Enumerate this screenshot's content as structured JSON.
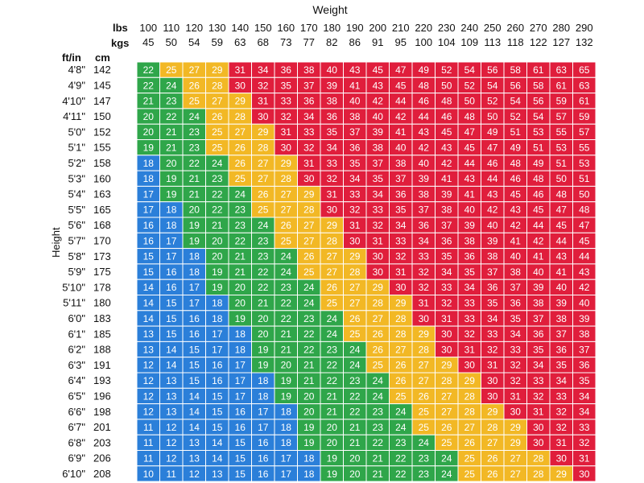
{
  "chart_data": {
    "type": "heatmap",
    "title": "Weight",
    "ylabel": "Height",
    "col_unit_labels": [
      "lbs",
      "kgs"
    ],
    "row_unit_labels": [
      "ft/in",
      "cm"
    ],
    "lbs": [
      "100",
      "110",
      "120",
      "130",
      "140",
      "150",
      "160",
      "170",
      "180",
      "190",
      "200",
      "210",
      "220",
      "230",
      "240",
      "250",
      "260",
      "270",
      "280",
      "290"
    ],
    "kgs": [
      "45",
      "50",
      "54",
      "59",
      "63",
      "68",
      "73",
      "77",
      "82",
      "86",
      "91",
      "95",
      "100",
      "104",
      "109",
      "113",
      "118",
      "122",
      "127",
      "132"
    ],
    "heights_ftin": [
      "4'8\"",
      "4'9\"",
      "4'10\"",
      "4'11\"",
      "5'0\"",
      "5'1\"",
      "5'2\"",
      "5'3\"",
      "5'4\"",
      "5'5\"",
      "5'6\"",
      "5'7\"",
      "5'8\"",
      "5'9\"",
      "5'10\"",
      "5'11\"",
      "6'0\"",
      "6'1\"",
      "6'2\"",
      "6'3\"",
      "6'4\"",
      "6'5\"",
      "6'6\"",
      "6'7\"",
      "6'8\"",
      "6'9\"",
      "6'10\""
    ],
    "heights_cm": [
      "142",
      "145",
      "147",
      "150",
      "152",
      "155",
      "158",
      "160",
      "163",
      "165",
      "168",
      "170",
      "173",
      "175",
      "178",
      "180",
      "183",
      "185",
      "188",
      "191",
      "193",
      "196",
      "198",
      "201",
      "203",
      "206",
      "208"
    ],
    "values": [
      [
        22,
        25,
        27,
        29,
        31,
        34,
        36,
        38,
        40,
        43,
        45,
        47,
        49,
        52,
        54,
        56,
        58,
        61,
        63,
        65
      ],
      [
        22,
        24,
        26,
        28,
        30,
        32,
        35,
        37,
        39,
        41,
        43,
        45,
        48,
        50,
        52,
        54,
        56,
        58,
        61,
        63
      ],
      [
        21,
        23,
        25,
        27,
        29,
        31,
        33,
        36,
        38,
        40,
        42,
        44,
        46,
        48,
        50,
        52,
        54,
        56,
        59,
        61
      ],
      [
        20,
        22,
        24,
        26,
        28,
        30,
        32,
        34,
        36,
        38,
        40,
        42,
        44,
        46,
        48,
        50,
        52,
        54,
        57,
        59
      ],
      [
        20,
        21,
        23,
        25,
        27,
        29,
        31,
        33,
        35,
        37,
        39,
        41,
        43,
        45,
        47,
        49,
        51,
        53,
        55,
        57
      ],
      [
        19,
        21,
        23,
        25,
        26,
        28,
        30,
        32,
        34,
        36,
        38,
        40,
        42,
        43,
        45,
        47,
        49,
        51,
        53,
        55
      ],
      [
        18,
        20,
        22,
        24,
        26,
        27,
        29,
        31,
        33,
        35,
        37,
        38,
        40,
        42,
        44,
        46,
        48,
        49,
        51,
        53
      ],
      [
        18,
        19,
        21,
        23,
        25,
        27,
        28,
        30,
        32,
        34,
        35,
        37,
        39,
        41,
        43,
        44,
        46,
        48,
        50,
        51
      ],
      [
        17,
        19,
        21,
        22,
        24,
        26,
        27,
        29,
        31,
        33,
        34,
        36,
        38,
        39,
        41,
        43,
        45,
        46,
        48,
        50
      ],
      [
        17,
        18,
        20,
        22,
        23,
        25,
        27,
        28,
        30,
        32,
        33,
        35,
        37,
        38,
        40,
        42,
        43,
        45,
        47,
        48
      ],
      [
        16,
        18,
        19,
        21,
        23,
        24,
        26,
        27,
        29,
        31,
        32,
        34,
        36,
        37,
        39,
        40,
        42,
        44,
        45,
        47
      ],
      [
        16,
        17,
        19,
        20,
        22,
        23,
        25,
        27,
        28,
        30,
        31,
        33,
        34,
        36,
        38,
        39,
        41,
        42,
        44,
        45
      ],
      [
        15,
        17,
        18,
        20,
        21,
        23,
        24,
        26,
        27,
        29,
        30,
        32,
        33,
        35,
        36,
        38,
        40,
        41,
        43,
        44
      ],
      [
        15,
        16,
        18,
        19,
        21,
        22,
        24,
        25,
        27,
        28,
        30,
        31,
        32,
        34,
        35,
        37,
        38,
        40,
        41,
        43
      ],
      [
        14,
        16,
        17,
        19,
        20,
        22,
        23,
        24,
        26,
        27,
        29,
        30,
        32,
        33,
        34,
        36,
        37,
        39,
        40,
        42
      ],
      [
        14,
        15,
        17,
        18,
        20,
        21,
        22,
        24,
        25,
        27,
        28,
        29,
        31,
        32,
        33,
        35,
        36,
        38,
        39,
        40
      ],
      [
        14,
        15,
        16,
        18,
        19,
        20,
        22,
        23,
        24,
        26,
        27,
        28,
        30,
        31,
        33,
        34,
        35,
        37,
        38,
        39
      ],
      [
        13,
        15,
        16,
        17,
        18,
        20,
        21,
        22,
        24,
        25,
        26,
        28,
        29,
        30,
        32,
        33,
        34,
        36,
        37,
        38
      ],
      [
        13,
        14,
        15,
        17,
        18,
        19,
        21,
        22,
        23,
        24,
        26,
        27,
        28,
        30,
        31,
        32,
        33,
        35,
        36,
        37
      ],
      [
        12,
        14,
        15,
        16,
        17,
        19,
        20,
        21,
        22,
        24,
        25,
        26,
        27,
        29,
        30,
        31,
        32,
        34,
        35,
        36
      ],
      [
        12,
        13,
        15,
        16,
        17,
        18,
        19,
        21,
        22,
        23,
        24,
        26,
        27,
        28,
        29,
        30,
        32,
        33,
        34,
        35
      ],
      [
        12,
        13,
        14,
        15,
        17,
        18,
        19,
        20,
        21,
        22,
        24,
        25,
        26,
        27,
        28,
        30,
        31,
        32,
        33,
        34
      ],
      [
        12,
        13,
        14,
        15,
        16,
        17,
        18,
        20,
        21,
        22,
        23,
        24,
        25,
        27,
        28,
        29,
        30,
        31,
        32,
        34
      ],
      [
        11,
        12,
        14,
        15,
        16,
        17,
        18,
        19,
        20,
        21,
        23,
        24,
        25,
        26,
        27,
        28,
        29,
        30,
        32,
        33
      ],
      [
        11,
        12,
        13,
        14,
        15,
        16,
        18,
        19,
        20,
        21,
        22,
        23,
        24,
        25,
        26,
        27,
        29,
        30,
        31,
        32
      ],
      [
        11,
        12,
        13,
        14,
        15,
        16,
        17,
        18,
        19,
        20,
        21,
        22,
        23,
        24,
        25,
        26,
        27,
        28,
        30,
        31
      ],
      [
        10,
        11,
        12,
        13,
        15,
        16,
        17,
        18,
        19,
        20,
        21,
        22,
        23,
        24,
        25,
        26,
        27,
        28,
        29,
        30
      ]
    ],
    "category_colors": {
      "blue": "#2b7fd9",
      "green": "#2fa64a",
      "yellow": "#f2b825",
      "red": "#e01e3c"
    },
    "category_thresholds": {
      "blue_below": 18.5,
      "green_below": 25,
      "yellow_below": 30
    },
    "grid": true
  }
}
